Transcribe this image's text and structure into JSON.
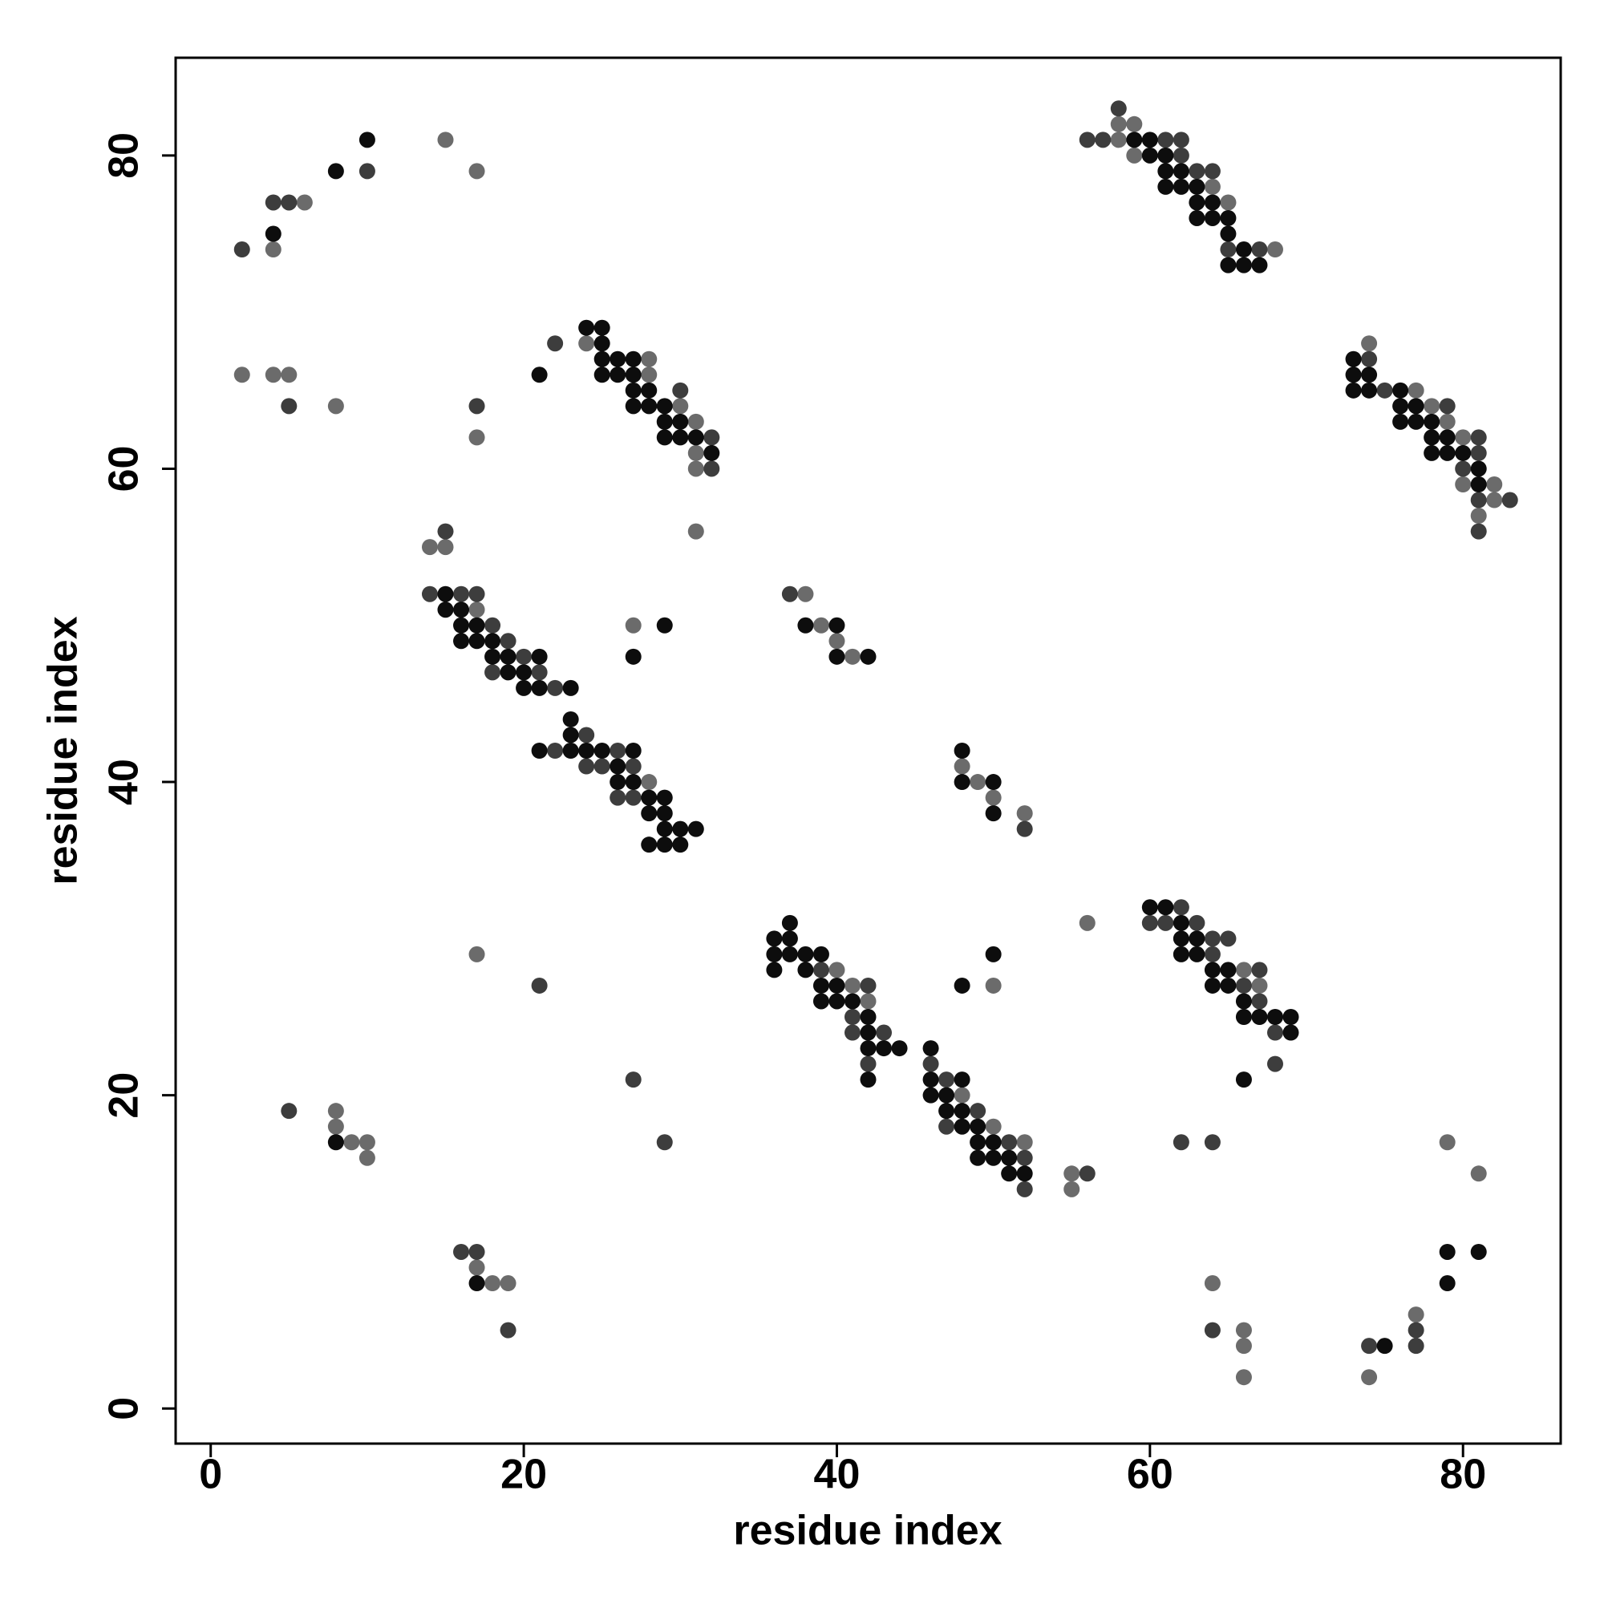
{
  "chart_data": {
    "type": "scatter",
    "x_label": "residue index",
    "y_label": "residue index",
    "xlim": [
      -2.24,
      86.24
    ],
    "ylim": [
      -2.24,
      86.24
    ],
    "xticks": [
      0,
      20,
      40,
      60,
      80
    ],
    "yticks": [
      0,
      20,
      40,
      60,
      80
    ],
    "grid": false,
    "series": [
      {
        "color": "#6b6b6b",
        "x": [
          6,
          4,
          15,
          17,
          2,
          4,
          5,
          8,
          17,
          24,
          28,
          28,
          30,
          31,
          31,
          31,
          31,
          14,
          15,
          17,
          27,
          28,
          38,
          39,
          40,
          41,
          48,
          49,
          50,
          52,
          40,
          41,
          42,
          48,
          50,
          52,
          55,
          55,
          50,
          56,
          66,
          67,
          58,
          59,
          58,
          59,
          64,
          65,
          68,
          74,
          77,
          78,
          79,
          80,
          80,
          82,
          82,
          81,
          8,
          8,
          9,
          10,
          10,
          17,
          17,
          18,
          19,
          64,
          66,
          66,
          66,
          74,
          77,
          79,
          81
        ],
        "y": [
          77,
          74,
          81,
          79,
          66,
          66,
          66,
          64,
          62,
          68,
          67,
          66,
          64,
          63,
          61,
          60,
          56,
          55,
          55,
          51,
          50,
          40,
          52,
          50,
          49,
          48,
          41,
          40,
          39,
          38,
          28,
          27,
          26,
          20,
          18,
          17,
          15,
          14,
          27,
          31,
          28,
          27,
          82,
          82,
          81,
          80,
          78,
          77,
          74,
          68,
          65,
          64,
          63,
          62,
          59,
          59,
          58,
          57,
          19,
          18,
          17,
          17,
          16,
          29,
          9,
          8,
          8,
          8,
          5,
          4,
          2,
          2,
          6,
          17,
          15
        ]
      },
      {
        "color": "#3d3d3d",
        "x": [
          2,
          4,
          5,
          10,
          5,
          17,
          22,
          30,
          32,
          32,
          15,
          14,
          16,
          17,
          18,
          19,
          20,
          18,
          21,
          22,
          24,
          22,
          26,
          24,
          25,
          27,
          26,
          27,
          37,
          52,
          39,
          42,
          41,
          41,
          43,
          42,
          46,
          47,
          49,
          47,
          51,
          52,
          52,
          56,
          62,
          60,
          61,
          63,
          64,
          65,
          64,
          67,
          66,
          67,
          68,
          68,
          58,
          56,
          57,
          61,
          62,
          62,
          63,
          64,
          65,
          67,
          74,
          75,
          79,
          81,
          81,
          80,
          81,
          83,
          81,
          5,
          21,
          27,
          29,
          16,
          17,
          19,
          62,
          64,
          64,
          74,
          77,
          77
        ],
        "y": [
          74,
          77,
          77,
          79,
          64,
          64,
          68,
          65,
          62,
          60,
          56,
          52,
          52,
          52,
          50,
          49,
          48,
          47,
          47,
          46,
          43,
          42,
          42,
          41,
          41,
          41,
          39,
          39,
          52,
          37,
          28,
          27,
          25,
          24,
          24,
          22,
          22,
          21,
          19,
          18,
          17,
          16,
          14,
          15,
          32,
          31,
          31,
          31,
          30,
          30,
          29,
          28,
          27,
          26,
          24,
          22,
          83,
          81,
          81,
          81,
          81,
          80,
          79,
          79,
          74,
          74,
          67,
          65,
          64,
          62,
          61,
          60,
          58,
          58,
          56,
          19,
          27,
          21,
          17,
          10,
          10,
          5,
          17,
          17,
          5,
          4,
          5,
          4
        ]
      },
      {
        "color": "#0d0d0d",
        "x": [
          4,
          8,
          10,
          21,
          24,
          25,
          25,
          25,
          26,
          27,
          25,
          26,
          27,
          27,
          28,
          27,
          28,
          29,
          29,
          30,
          29,
          30,
          31,
          32,
          15,
          15,
          16,
          16,
          17,
          16,
          17,
          18,
          18,
          19,
          21,
          19,
          20,
          20,
          21,
          23,
          29,
          27,
          23,
          23,
          21,
          23,
          24,
          25,
          27,
          26,
          26,
          27,
          28,
          29,
          28,
          29,
          29,
          30,
          31,
          28,
          29,
          30,
          38,
          40,
          40,
          42,
          48,
          48,
          50,
          50,
          37,
          36,
          37,
          36,
          37,
          38,
          39,
          36,
          38,
          39,
          40,
          39,
          40,
          41,
          42,
          42,
          42,
          43,
          44,
          42,
          46,
          46,
          48,
          46,
          47,
          47,
          48,
          48,
          49,
          49,
          50,
          49,
          50,
          51,
          51,
          52,
          48,
          50,
          60,
          61,
          62,
          62,
          63,
          62,
          63,
          64,
          65,
          64,
          65,
          66,
          66,
          67,
          68,
          69,
          69,
          66,
          59,
          60,
          60,
          61,
          61,
          62,
          61,
          62,
          63,
          63,
          64,
          63,
          64,
          65,
          65,
          66,
          65,
          66,
          67,
          73,
          73,
          74,
          73,
          74,
          76,
          76,
          77,
          76,
          77,
          78,
          78,
          79,
          78,
          79,
          80,
          81,
          81,
          8,
          17,
          75,
          79,
          81,
          79
        ],
        "y": [
          75,
          79,
          81,
          66,
          69,
          69,
          68,
          67,
          67,
          67,
          66,
          66,
          66,
          65,
          65,
          64,
          64,
          64,
          63,
          63,
          62,
          62,
          62,
          61,
          52,
          51,
          51,
          50,
          50,
          49,
          49,
          49,
          48,
          48,
          48,
          47,
          47,
          46,
          46,
          46,
          50,
          48,
          44,
          43,
          42,
          42,
          42,
          42,
          42,
          41,
          40,
          40,
          39,
          39,
          38,
          38,
          37,
          37,
          37,
          36,
          36,
          36,
          50,
          50,
          48,
          48,
          42,
          40,
          40,
          38,
          31,
          30,
          30,
          29,
          29,
          29,
          29,
          28,
          28,
          27,
          27,
          26,
          26,
          26,
          25,
          24,
          23,
          23,
          23,
          21,
          23,
          21,
          21,
          20,
          20,
          19,
          19,
          18,
          18,
          17,
          17,
          16,
          16,
          16,
          15,
          15,
          27,
          29,
          32,
          32,
          31,
          30,
          30,
          29,
          29,
          28,
          28,
          27,
          27,
          26,
          25,
          25,
          25,
          25,
          24,
          21,
          81,
          81,
          80,
          80,
          79,
          79,
          78,
          78,
          78,
          77,
          77,
          76,
          76,
          76,
          75,
          74,
          73,
          73,
          73,
          67,
          66,
          66,
          65,
          65,
          65,
          64,
          64,
          63,
          63,
          63,
          62,
          62,
          61,
          61,
          61,
          60,
          59,
          17,
          8,
          4,
          10,
          10,
          8
        ]
      }
    ]
  }
}
